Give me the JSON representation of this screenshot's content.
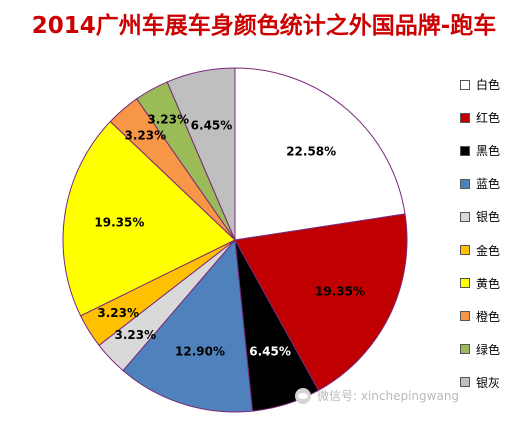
{
  "chart_data": {
    "type": "pie",
    "title": "2014广州车展车身颜色统计之外国品牌-跑车",
    "slices": [
      {
        "label": "白色",
        "value": 22.58,
        "display": "22.58%",
        "color": "#ffffff"
      },
      {
        "label": "红色",
        "value": 19.35,
        "display": "19.35%",
        "color": "#c00000"
      },
      {
        "label": "黑色",
        "value": 6.45,
        "display": "6.45%",
        "color": "#000000"
      },
      {
        "label": "蓝色",
        "value": 12.9,
        "display": "12.90%",
        "color": "#4f81bd"
      },
      {
        "label": "银色",
        "value": 3.23,
        "display": "3.23%",
        "color": "#d9d9d9"
      },
      {
        "label": "金色",
        "value": 3.23,
        "display": "3.23%",
        "color": "#ffc000"
      },
      {
        "label": "黄色",
        "value": 19.35,
        "display": "19.35%",
        "color": "#ffff00"
      },
      {
        "label": "橙色",
        "value": 3.23,
        "display": "3.23%",
        "color": "#f79646"
      },
      {
        "label": "绿色",
        "value": 3.23,
        "display": "3.23%",
        "color": "#9bbb59"
      },
      {
        "label": "银灰",
        "value": 6.45,
        "display": "6.45%",
        "color": "#bfbfbf"
      }
    ],
    "legend_position": "right"
  },
  "watermark": {
    "text": "微信号: xinchepingwang",
    "icon": "wechat-icon"
  }
}
